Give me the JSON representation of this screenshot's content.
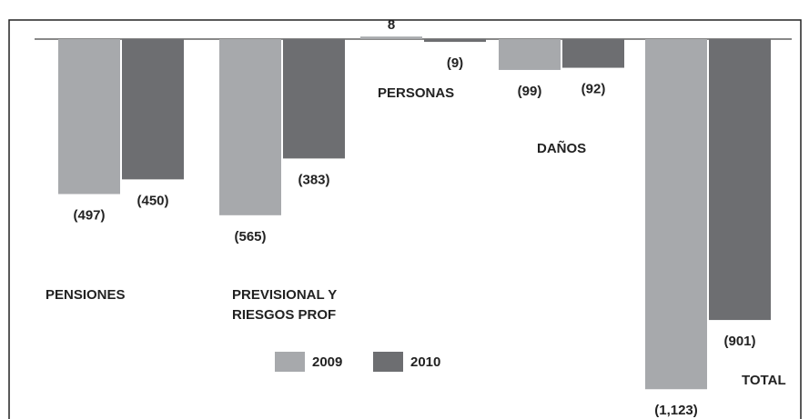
{
  "chart_data": {
    "type": "bar",
    "categories": [
      "PENSIONES",
      "PREVISIONAL Y RIESGOS PROF",
      "PERSONAS",
      "DAÑOS",
      "TOTAL"
    ],
    "series": [
      {
        "name": "2009",
        "color": "#a7a9ac",
        "values": [
          -497,
          -565,
          8,
          -99,
          -1123
        ],
        "value_labels": [
          "(497)",
          "(565)",
          "8",
          "(99)",
          "(1,123)"
        ]
      },
      {
        "name": "2010",
        "color": "#6d6e71",
        "values": [
          -450,
          -383,
          -9,
          -92,
          -901
        ],
        "value_labels": [
          "(450)",
          "(383)",
          "(9)",
          "(92)",
          "(901)"
        ]
      }
    ],
    "ylim": [
      -1150,
      30
    ]
  }
}
